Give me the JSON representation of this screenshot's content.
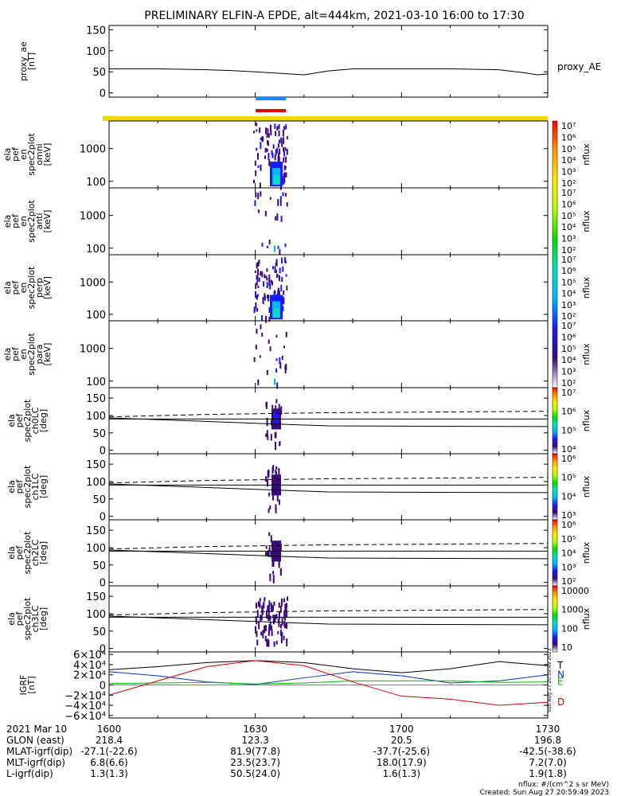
{
  "title": "PRELIMINARY ELFIN-A EPDE, alt=444km, 2021-03-10 16:00 to 17:30",
  "colors": {
    "blue_bar": "#1a8cff",
    "red_bar": "#e60000",
    "yellow_bar": "#f2d600",
    "line": "#000000",
    "T": "#000000",
    "N": "#0033cc",
    "E": "#00bb00",
    "D": "#dd0000"
  },
  "colorbar_stops": [
    "#ffffff",
    "#3a0a7a",
    "#1a1aff",
    "#00b4ff",
    "#00e0c0",
    "#00dd00",
    "#b0ff00",
    "#ffee00",
    "#ff9900",
    "#ff0000"
  ],
  "chart_data": [
    {
      "type": "line",
      "id": "proxy_ae",
      "ylabel": "proxy_ae\n[nT]",
      "series_label": "proxy_AE",
      "yticks": [
        0,
        50,
        100,
        150
      ],
      "ylim": [
        -10,
        160
      ],
      "x_minutes": [
        0,
        10,
        20,
        25,
        30,
        40,
        45,
        50,
        55,
        60,
        70,
        80,
        85,
        88,
        90
      ],
      "values": [
        57,
        57,
        55,
        53,
        50,
        43,
        52,
        57,
        57,
        57,
        57,
        55,
        48,
        43,
        45
      ]
    },
    {
      "type": "heatmap",
      "id": "omni",
      "ylabel": "ela\npef\nen\nspec2plot\nomni\n[keV]",
      "yticks": [
        "100",
        "1000"
      ],
      "log_y": true,
      "ylim": [
        63,
        7000
      ],
      "colorbar_label": "nflux",
      "colorbar_ticks": [
        "10²",
        "10³",
        "10⁴",
        "10⁵",
        "10⁶",
        "10⁷"
      ]
    },
    {
      "type": "heatmap",
      "id": "anti",
      "ylabel": "ela\npef\nen\nspec2plot\nanti\n[keV]",
      "yticks": [
        "100",
        "1000"
      ],
      "log_y": true,
      "ylim": [
        63,
        7000
      ],
      "colorbar_label": "nflux",
      "colorbar_ticks": [
        "10²",
        "10³",
        "10⁴",
        "10⁵",
        "10⁶",
        "10⁷"
      ]
    },
    {
      "type": "heatmap",
      "id": "perp",
      "ylabel": "ela\npef\nen\nspec2plot\nperp\n[keV]",
      "yticks": [
        "100",
        "1000"
      ],
      "log_y": true,
      "ylim": [
        63,
        7000
      ],
      "colorbar_label": "nflux",
      "colorbar_ticks": [
        "10²",
        "10³",
        "10⁴",
        "10⁵",
        "10⁶",
        "10⁷"
      ]
    },
    {
      "type": "heatmap",
      "id": "para",
      "ylabel": "ela\npef\nen\nspec2plot\npara\n[keV]",
      "yticks": [
        "100",
        "1000"
      ],
      "log_y": true,
      "ylim": [
        63,
        7000
      ],
      "colorbar_label": "nflux",
      "colorbar_ticks": [
        "10²",
        "10³",
        "10⁴",
        "10⁵",
        "10⁶",
        "10⁷"
      ]
    },
    {
      "type": "heatmap",
      "id": "ch0LC",
      "ylabel": "ela\npef\nspec2plot\nch0LC\n[deg]",
      "yticks": [
        "0",
        "50",
        "100",
        "150"
      ],
      "ylim": [
        -10,
        180
      ],
      "colorbar_label": "nflux",
      "colorbar_ticks": [
        "10⁴",
        "10⁵",
        "10⁶",
        "10⁷"
      ]
    },
    {
      "type": "heatmap",
      "id": "ch1LC",
      "ylabel": "ela\npef\nspec2plot\nch1LC\n[deg]",
      "yticks": [
        "0",
        "50",
        "100",
        "150"
      ],
      "ylim": [
        -10,
        180
      ],
      "colorbar_label": "nflux",
      "colorbar_ticks": [
        "10³",
        "10⁴",
        "10⁵",
        "10⁶"
      ]
    },
    {
      "type": "heatmap",
      "id": "ch2LC",
      "ylabel": "ela\npef\nspec2plot\nch2LC\n[deg]",
      "yticks": [
        "0",
        "50",
        "100",
        "150"
      ],
      "ylim": [
        -10,
        180
      ],
      "colorbar_label": "nflux",
      "colorbar_ticks": [
        "10²",
        "10³",
        "10⁴",
        "10⁵",
        "10⁶"
      ]
    },
    {
      "type": "heatmap",
      "id": "ch3LC",
      "ylabel": "ela\npef\nspec2plot\nch3LC\n[deg]",
      "yticks": [
        "0",
        "50",
        "100",
        "150"
      ],
      "ylim": [
        -10,
        180
      ],
      "colorbar_label": "nflux",
      "colorbar_ticks": [
        "10",
        "100",
        "1000",
        "10000"
      ]
    },
    {
      "type": "line",
      "id": "igrf",
      "ylabel": "IGRF\n[nT]",
      "yticks": [
        "6×10⁴",
        "4×10⁴",
        "2×10⁴",
        "0",
        "−2×10⁴",
        "−4×10⁴",
        "−6×10⁴"
      ],
      "ytick_values": [
        60000,
        40000,
        20000,
        0,
        -20000,
        -40000,
        -60000
      ],
      "ylim": [
        -65000,
        65000
      ],
      "x_minutes": [
        0,
        10,
        20,
        30,
        40,
        50,
        60,
        70,
        80,
        90
      ],
      "series": [
        {
          "name": "T",
          "values": [
            30000,
            36000,
            44000,
            48000,
            44000,
            32000,
            24000,
            32000,
            46000,
            38000
          ]
        },
        {
          "name": "N",
          "values": [
            26000,
            18000,
            6000,
            1000,
            14000,
            26000,
            18000,
            4000,
            8000,
            20000
          ]
        },
        {
          "name": "E",
          "values": [
            3000,
            4000,
            5000,
            2000,
            4000,
            8000,
            8000,
            8000,
            5000,
            6000
          ]
        },
        {
          "name": "D",
          "values": [
            -20000,
            8000,
            36000,
            48000,
            38000,
            6000,
            -22000,
            -28000,
            -40000,
            -34000
          ]
        }
      ]
    }
  ],
  "footer": {
    "rows": [
      {
        "label": "2021 Mar 10",
        "values": [
          "1600",
          "1630",
          "1700",
          "1730"
        ]
      },
      {
        "label": "GLON (east)",
        "values": [
          "218.4",
          "123.3",
          "20.5",
          "196.8"
        ]
      },
      {
        "label": "MLAT-igrf(dip)",
        "values": [
          "-27.1(-22.6)",
          "81.9(77.8)",
          "-37.7(-25.6)",
          "-42.5(-38.6)"
        ]
      },
      {
        "label": "MLT-igrf(dip)",
        "values": [
          "6.8(6.6)",
          "23.5(23.7)",
          "18.0(17.9)",
          "7.2(7.0)"
        ]
      },
      {
        "label": "L-igrf(dip)",
        "values": [
          "1.3(1.3)",
          "50.5(24.0)",
          "1.6(1.3)",
          "1.9(1.8)"
        ]
      }
    ],
    "units_note": "nflux: #/(cm^2 s sr MeV)",
    "created": "Created: Sun Aug 27 20:59:49 2023",
    "side_stamp": "Sun Aug 27 20:59:49 2023"
  }
}
